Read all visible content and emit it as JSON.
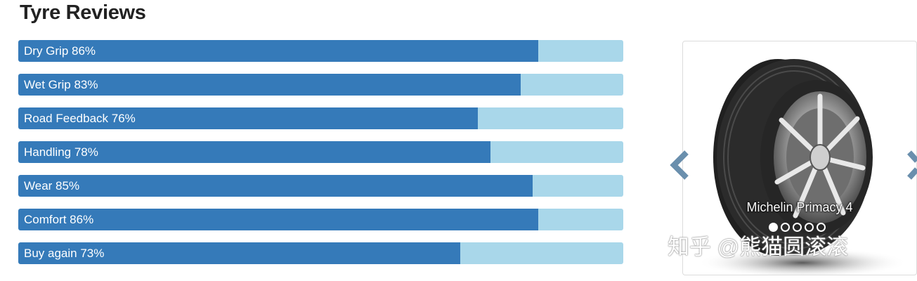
{
  "page": {
    "title": "Tyre Reviews"
  },
  "ratings": [
    {
      "label": "Dry Grip 86%",
      "percent": 86
    },
    {
      "label": "Wet Grip 83%",
      "percent": 83
    },
    {
      "label": "Road Feedback 76%",
      "percent": 76
    },
    {
      "label": "Handling 78%",
      "percent": 78
    },
    {
      "label": "Wear 85%",
      "percent": 85
    },
    {
      "label": "Comfort 86%",
      "percent": 86
    },
    {
      "label": "Buy again 73%",
      "percent": 73
    }
  ],
  "colors": {
    "fill": "#357ab9",
    "track": "#a9d7ea",
    "arrow": "#6a8fad"
  },
  "carousel": {
    "caption": "Michelin Primacy 4",
    "slide_count": 5,
    "active_index": 0,
    "prev_icon": "chevron-left-icon",
    "next_icon": "chevron-right-icon"
  },
  "watermark": "知乎 @熊猫圆滚滚"
}
